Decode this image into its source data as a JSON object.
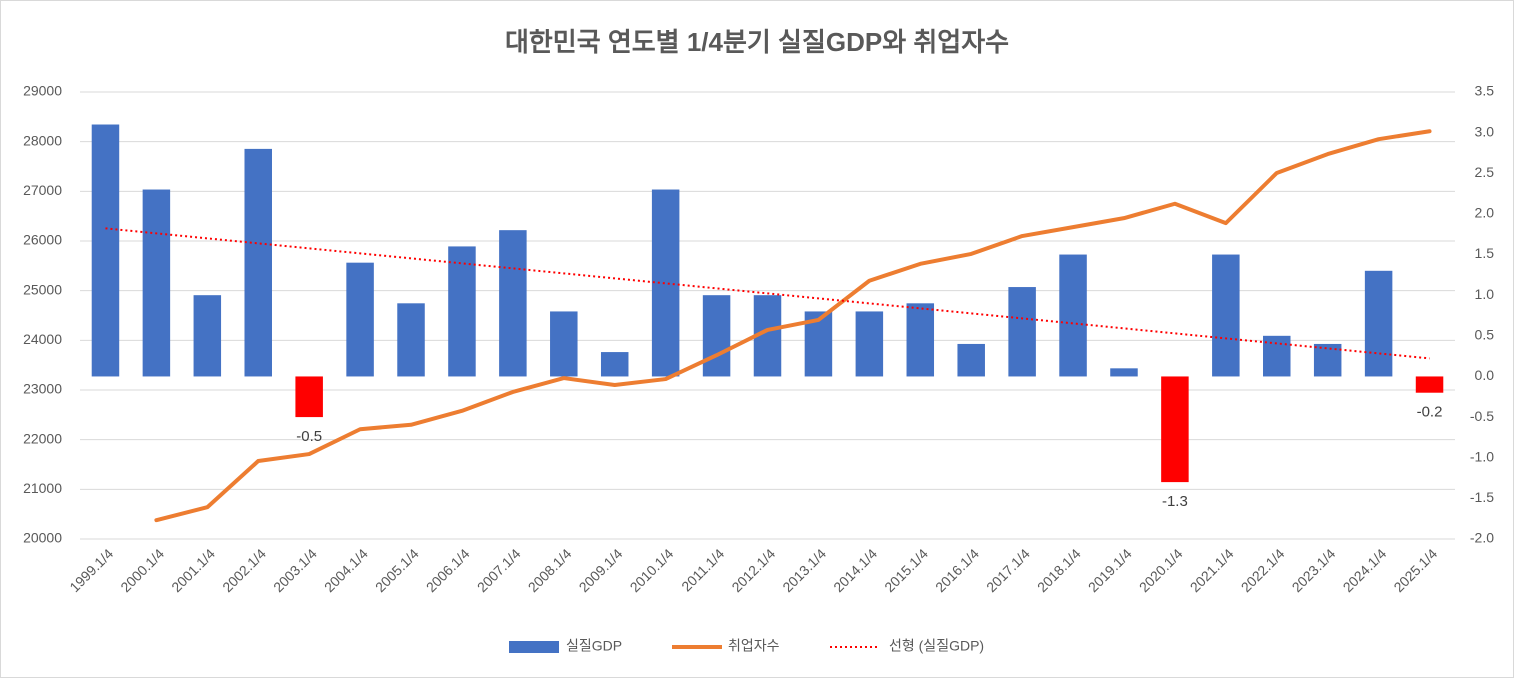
{
  "chart_data": {
    "type": "bar_line",
    "title": "대한민국 연도별 1/4분기 실질GDP와 취업자수",
    "categories": [
      "1999.1/4",
      "2000.1/4",
      "2001.1/4",
      "2002.1/4",
      "2003.1/4",
      "2004.1/4",
      "2005.1/4",
      "2006.1/4",
      "2007.1/4",
      "2008.1/4",
      "2009.1/4",
      "2010.1/4",
      "2011.1/4",
      "2012.1/4",
      "2013.1/4",
      "2014.1/4",
      "2015.1/4",
      "2016.1/4",
      "2017.1/4",
      "2018.1/4",
      "2019.1/4",
      "2020.1/4",
      "2021.1/4",
      "2022.1/4",
      "2023.1/4",
      "2024.1/4",
      "2025.1/4"
    ],
    "series": [
      {
        "name": "실질GDP",
        "type": "bar",
        "axis": "y2",
        "color": "#4472c4",
        "negative_color": "#ff0000",
        "values": [
          3.1,
          2.3,
          1.0,
          2.8,
          -0.5,
          1.4,
          0.9,
          1.6,
          1.8,
          0.8,
          0.3,
          2.3,
          1.0,
          1.0,
          0.8,
          0.8,
          0.9,
          0.4,
          1.1,
          1.5,
          0.1,
          -1.3,
          1.5,
          0.5,
          0.4,
          1.3,
          -0.2
        ],
        "value_labels": [
          null,
          null,
          null,
          null,
          "-0.5",
          null,
          null,
          null,
          null,
          null,
          null,
          null,
          null,
          null,
          null,
          null,
          null,
          null,
          null,
          null,
          null,
          "-1.3",
          null,
          null,
          null,
          null,
          "-0.2"
        ]
      },
      {
        "name": "취업자수",
        "type": "line",
        "axis": "y",
        "color": "#ed7d31",
        "values": [
          null,
          20380,
          20640,
          21570,
          21710,
          22210,
          22300,
          22580,
          22960,
          23240,
          23100,
          23220,
          23700,
          24210,
          24410,
          25200,
          25540,
          25740,
          26100,
          26280,
          26460,
          26750,
          26360,
          27370,
          27750,
          28050,
          28210
        ]
      }
    ],
    "trendline": {
      "name": "선형 (실질GDP)",
      "of_series": 0,
      "color": "#ff0000"
    },
    "ylim": [
      20000,
      29000
    ],
    "yticks": [
      20000,
      21000,
      22000,
      23000,
      24000,
      25000,
      26000,
      27000,
      28000,
      29000
    ],
    "y2lim": [
      -2,
      3.5
    ],
    "y2ticks": [
      {
        "value": -2,
        "label": "-2.0"
      },
      -1.5,
      {
        "value": -1,
        "label": "-1.0"
      },
      -0.5,
      {
        "value": 0,
        "label": "0.0"
      },
      0.5,
      {
        "value": 1,
        "label": "1.0"
      },
      1.5,
      {
        "value": 2,
        "label": "2.0"
      },
      2.5,
      {
        "value": 3,
        "label": "3.0"
      },
      3.5
    ],
    "grid": true,
    "legend": "bottom"
  }
}
